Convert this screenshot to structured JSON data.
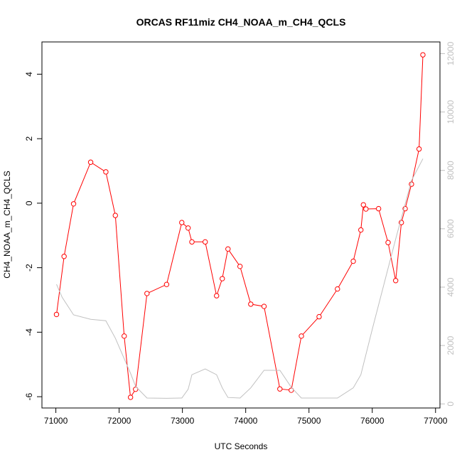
{
  "chart_data": {
    "type": "line",
    "title": "ORCAS RF11miz CH4_NOAA_m_CH4_QCLS",
    "xlabel": "UTC Seconds",
    "ylabel": "CH4_NOAA_m_CH4_QCLS",
    "xlim": [
      70780,
      77070
    ],
    "ylim": [
      -6.35,
      5.0
    ],
    "y2lim": [
      -140,
      12400
    ],
    "x_ticks": [
      71000,
      72000,
      73000,
      74000,
      75000,
      76000,
      77000
    ],
    "x_tick_labels": [
      "71000",
      "72000",
      "73000",
      "74000",
      "75000",
      "76000",
      "77000"
    ],
    "y_ticks": [
      -6,
      -4,
      -2,
      0,
      2,
      4
    ],
    "y_tick_labels": [
      "-6",
      "-4",
      "-2",
      "0",
      "2",
      "4"
    ],
    "y2_ticks": [
      0,
      2000,
      4000,
      6000,
      8000,
      10000,
      12000
    ],
    "y2_tick_labels": [
      "0",
      "2000",
      "4000",
      "6000",
      "8000",
      "10000",
      "12000"
    ],
    "grid": false,
    "series": [
      {
        "color": "#ff0000",
        "marker": "open-circle",
        "axis": "left",
        "x": [
          71010,
          71130,
          71280,
          71550,
          71790,
          71940,
          72080,
          72180,
          72260,
          72440,
          72750,
          72990,
          73090,
          73150,
          73360,
          73540,
          73630,
          73720,
          73910,
          74080,
          74290,
          74540,
          74720,
          74880,
          75160,
          75450,
          75700,
          75820,
          75860,
          75900,
          76100,
          76250,
          76370,
          76460,
          76520,
          76620,
          76740,
          76800
        ],
        "y": [
          -3.45,
          -1.65,
          -0.02,
          1.27,
          0.97,
          -0.38,
          -4.12,
          -6.02,
          -5.77,
          -2.8,
          -2.52,
          -0.6,
          -0.77,
          -1.2,
          -1.2,
          -2.87,
          -2.34,
          -1.42,
          -1.96,
          -3.13,
          -3.2,
          -5.76,
          -5.8,
          -4.12,
          -3.52,
          -2.66,
          -1.8,
          -0.83,
          -0.05,
          -0.18,
          -0.17,
          -1.22,
          -2.4,
          -0.6,
          -0.17,
          0.59,
          1.68,
          4.6
        ]
      },
      {
        "color": "#c0c0c0",
        "axis": "right",
        "x": [
          71010,
          71100,
          71280,
          71550,
          71790,
          71940,
          72080,
          72180,
          72260,
          72440,
          72750,
          72990,
          73090,
          73150,
          73360,
          73540,
          73630,
          73720,
          73910,
          74080,
          74290,
          74540,
          74720,
          74880,
          75160,
          75450,
          75700,
          75820,
          76000,
          76370,
          76620,
          76800
        ],
        "y": [
          4100,
          3650,
          3050,
          2900,
          2850,
          2250,
          1550,
          1050,
          600,
          200,
          190,
          200,
          500,
          1000,
          1200,
          1000,
          550,
          220,
          200,
          550,
          1150,
          1150,
          570,
          200,
          200,
          200,
          550,
          1000,
          2550,
          5650,
          7650,
          8400
        ]
      }
    ]
  }
}
